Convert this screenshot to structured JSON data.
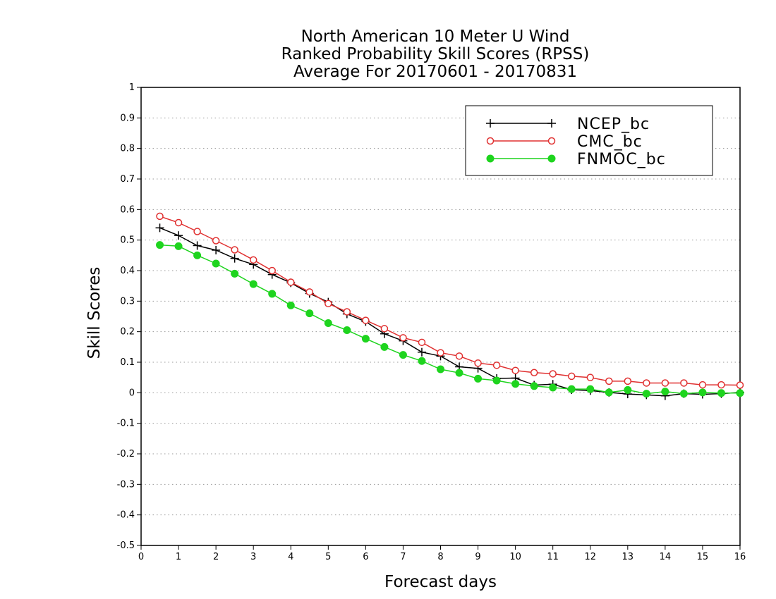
{
  "chart_data": {
    "type": "line",
    "title": [
      "North American 10 Meter U Wind",
      "Ranked Probability Skill Scores (RPSS)",
      "Average For 20170601 - 20170831"
    ],
    "xlabel": "Forecast days",
    "ylabel": "Skill Scores",
    "xlim": [
      0,
      16
    ],
    "ylim": [
      -0.5,
      1
    ],
    "xticks": [
      0,
      1,
      2,
      3,
      4,
      5,
      6,
      7,
      8,
      9,
      10,
      11,
      12,
      13,
      14,
      15,
      16
    ],
    "yticks": [
      -0.5,
      -0.4,
      -0.3,
      -0.2,
      -0.1,
      0,
      0.1,
      0.2,
      0.3,
      0.4,
      0.5,
      0.6,
      0.7,
      0.8,
      0.9,
      1
    ],
    "ytick_labels": [
      "-0.5",
      "-0.4",
      "-0.3",
      "-0.2",
      "-0.1",
      "0",
      "0.1",
      "0.2",
      "0.3",
      "0.4",
      "0.5",
      "0.6",
      "0.7",
      "0.8",
      "0.9",
      "1"
    ],
    "grid": "horizontal-dotted",
    "legend_position": "top-right",
    "x": [
      0.5,
      1,
      1.5,
      2,
      2.5,
      3,
      3.5,
      4,
      4.5,
      5,
      5.5,
      6,
      6.5,
      7,
      7.5,
      8,
      8.5,
      9,
      9.5,
      10,
      10.5,
      11,
      11.5,
      12,
      12.5,
      13,
      13.5,
      14,
      14.5,
      15,
      15.5,
      16
    ],
    "series": [
      {
        "name": "NCEP_bc",
        "color": "#000000",
        "marker": "plus",
        "values": [
          0.54,
          0.515,
          0.482,
          0.467,
          0.44,
          0.42,
          0.387,
          0.36,
          0.325,
          0.297,
          0.258,
          0.233,
          0.193,
          0.17,
          0.133,
          0.12,
          0.085,
          0.08,
          0.047,
          0.048,
          0.025,
          0.028,
          0.01,
          0.007,
          0.001,
          -0.004,
          -0.007,
          -0.01,
          -0.003,
          -0.005,
          -0.003,
          0.001
        ]
      },
      {
        "name": "CMC_bc",
        "color": "#e03030",
        "marker": "open-circle",
        "values": [
          0.578,
          0.557,
          0.528,
          0.498,
          0.468,
          0.435,
          0.4,
          0.362,
          0.33,
          0.292,
          0.265,
          0.237,
          0.21,
          0.18,
          0.165,
          0.131,
          0.12,
          0.097,
          0.09,
          0.073,
          0.066,
          0.062,
          0.054,
          0.05,
          0.038,
          0.038,
          0.032,
          0.032,
          0.032,
          0.026,
          0.026,
          0.025
        ]
      },
      {
        "name": "FNMOC_bc",
        "color": "#1ed41e",
        "marker": "filled-circle",
        "values": [
          0.484,
          0.48,
          0.45,
          0.423,
          0.39,
          0.356,
          0.324,
          0.286,
          0.26,
          0.228,
          0.205,
          0.177,
          0.15,
          0.124,
          0.104,
          0.077,
          0.065,
          0.046,
          0.04,
          0.029,
          0.022,
          0.017,
          0.012,
          0.012,
          0.001,
          0.009,
          -0.003,
          0.004,
          -0.003,
          0.001,
          -0.001,
          -0.001
        ]
      }
    ]
  }
}
